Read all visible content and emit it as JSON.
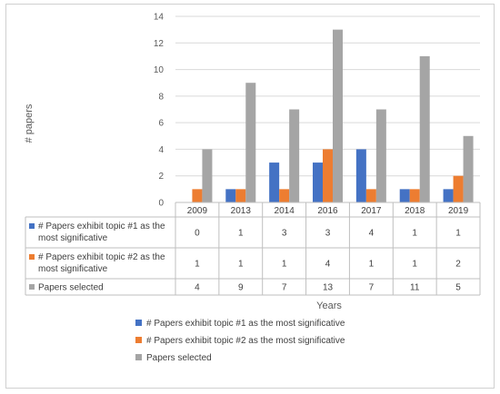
{
  "chart_data": {
    "type": "bar",
    "title": "",
    "xlabel": "Years",
    "ylabel": "# papers",
    "ylim": [
      0,
      14
    ],
    "yticks": [
      0,
      2,
      4,
      6,
      8,
      10,
      12,
      14
    ],
    "grid": true,
    "legend_position": "bottom",
    "categories": [
      "2009",
      "2013",
      "2014",
      "2016",
      "2017",
      "2018",
      "2019"
    ],
    "series": [
      {
        "name": "# Papers exhibit topic #1 as the most significative",
        "table_label": [
          "# Papers exhibit topic #1 as the",
          "most significative"
        ],
        "color": "#4472C4",
        "values": [
          0,
          1,
          3,
          3,
          4,
          1,
          1
        ]
      },
      {
        "name": "# Papers exhibit topic #2 as the most significative",
        "table_label": [
          "# Papers exhibit topic #2 as the",
          "most significative"
        ],
        "color": "#ED7D31",
        "values": [
          1,
          1,
          1,
          4,
          1,
          1,
          2
        ]
      },
      {
        "name": "Papers selected",
        "table_label": [
          "Papers selected"
        ],
        "color": "#A5A5A5",
        "values": [
          4,
          9,
          7,
          13,
          7,
          11,
          5
        ]
      }
    ]
  }
}
